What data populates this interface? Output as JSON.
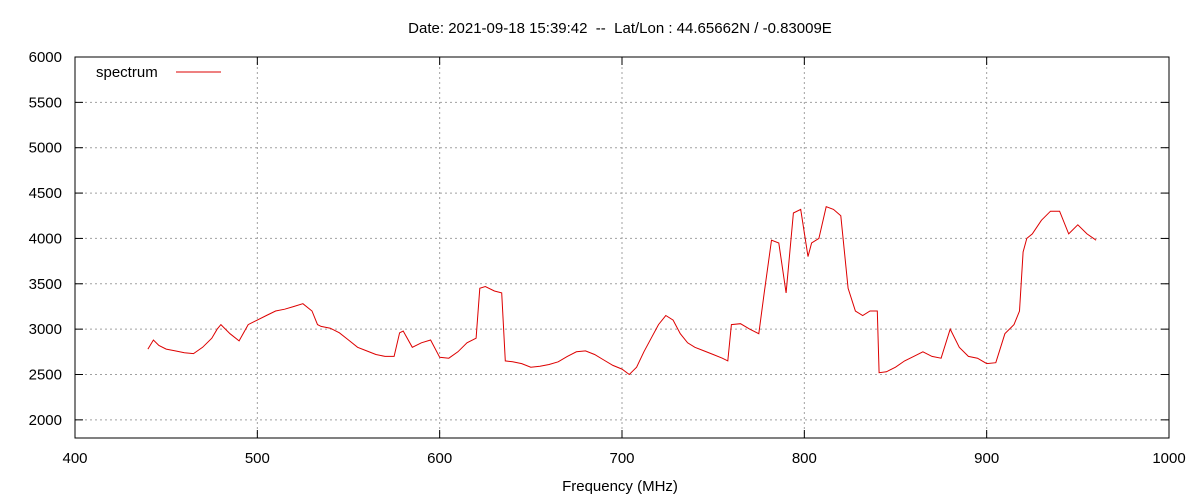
{
  "chart_data": {
    "type": "line",
    "title": "Date: 2021-09-18 15:39:42  --  Lat/Lon : 44.65662N / -0.83009E",
    "xlabel": "Frequency (MHz)",
    "ylabel": "",
    "xlim": [
      400,
      1000
    ],
    "ylim": [
      1800,
      6000
    ],
    "xticks": [
      400,
      500,
      600,
      700,
      800,
      900,
      1000
    ],
    "yticks": [
      2000,
      2500,
      3000,
      3500,
      4000,
      4500,
      5000,
      5500,
      6000
    ],
    "grid": true,
    "legend": {
      "placement": "top-left"
    },
    "series": [
      {
        "name": "spectrum",
        "color": "#dd0000",
        "x": [
          440,
          443,
          446,
          450,
          455,
          460,
          465,
          470,
          475,
          478,
          480,
          485,
          490,
          495,
          500,
          505,
          510,
          515,
          520,
          525,
          530,
          533,
          535,
          540,
          545,
          550,
          555,
          560,
          565,
          570,
          575,
          578,
          580,
          585,
          590,
          595,
          600,
          605,
          610,
          615,
          620,
          622,
          625,
          630,
          634,
          636,
          640,
          645,
          650,
          655,
          660,
          665,
          670,
          675,
          680,
          685,
          690,
          695,
          700,
          704,
          708,
          712,
          716,
          720,
          724,
          728,
          732,
          736,
          740,
          745,
          750,
          755,
          758,
          760,
          765,
          770,
          775,
          778,
          782,
          786,
          790,
          794,
          798,
          802,
          804,
          808,
          812,
          816,
          820,
          824,
          828,
          832,
          836,
          840,
          841,
          845,
          850,
          855,
          860,
          865,
          870,
          875,
          880,
          885,
          890,
          895,
          900,
          905,
          910,
          915,
          918,
          920,
          922,
          925,
          930,
          935,
          940,
          945,
          950,
          955,
          960
        ],
        "y": [
          2780,
          2880,
          2820,
          2780,
          2760,
          2740,
          2730,
          2800,
          2900,
          3000,
          3050,
          2950,
          2870,
          3050,
          3100,
          3150,
          3200,
          3220,
          3250,
          3280,
          3200,
          3050,
          3030,
          3010,
          2960,
          2880,
          2800,
          2760,
          2720,
          2700,
          2700,
          2960,
          2980,
          2800,
          2850,
          2880,
          2690,
          2680,
          2750,
          2850,
          2900,
          3450,
          3470,
          3420,
          3400,
          2650,
          2640,
          2620,
          2580,
          2590,
          2610,
          2640,
          2700,
          2750,
          2760,
          2720,
          2660,
          2600,
          2560,
          2500,
          2580,
          2750,
          2900,
          3050,
          3150,
          3100,
          2950,
          2850,
          2800,
          2760,
          2720,
          2680,
          2650,
          3050,
          3060,
          3000,
          2950,
          3400,
          3980,
          3950,
          3400,
          4280,
          4320,
          3800,
          3950,
          4000,
          4350,
          4320,
          4250,
          3450,
          3200,
          3150,
          3200,
          3200,
          2520,
          2530,
          2580,
          2650,
          2700,
          2750,
          2700,
          2680,
          3000,
          2800,
          2700,
          2680,
          2620,
          2630,
          2950,
          3050,
          3200,
          3850,
          4000,
          4050,
          4200,
          4300,
          4300,
          4050,
          4150,
          4050,
          3980
        ]
      }
    ]
  }
}
